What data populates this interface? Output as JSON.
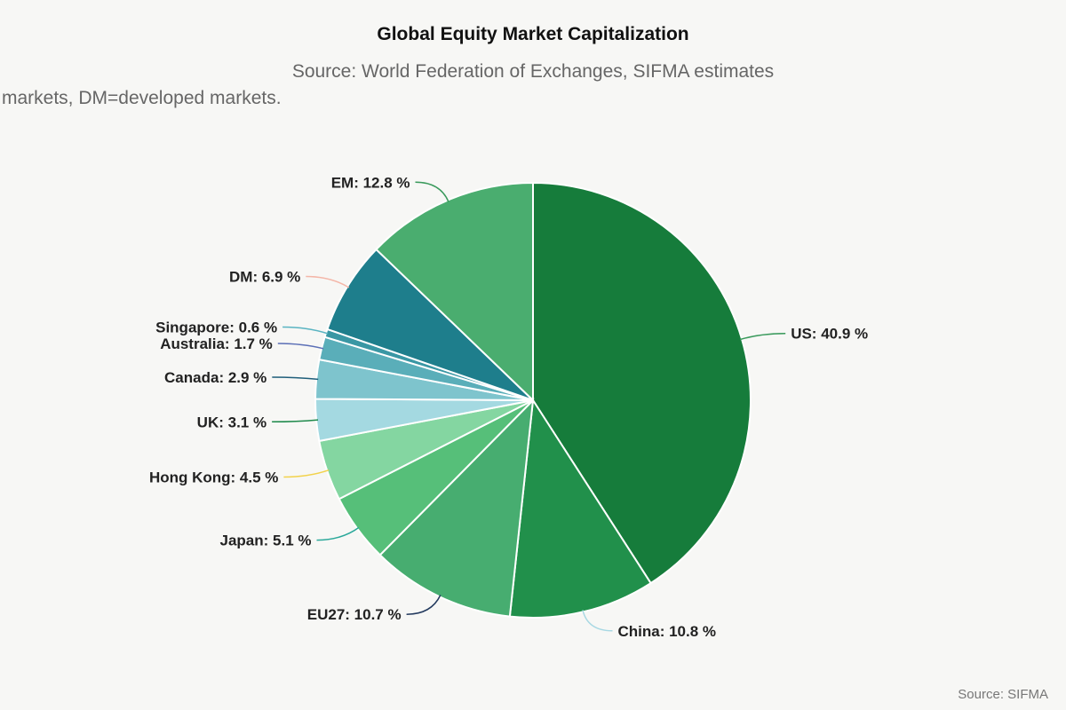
{
  "chart_data": {
    "type": "pie",
    "title": "Global Equity Market Capitalization",
    "subtitle": "Source: World Federation of Exchanges, SIFMA estimates",
    "subtitle_line2": "markets, DM=developed markets.",
    "credit": "Source: SIFMA",
    "unit": "%",
    "slices": [
      {
        "name": "US",
        "value": 40.9,
        "color": "#167c3b",
        "leader_color": "#3a9a5c"
      },
      {
        "name": "China",
        "value": 10.8,
        "color": "#21904b",
        "leader_color": "#a7d8e3"
      },
      {
        "name": "EU27",
        "value": 10.7,
        "color": "#47ad70",
        "leader_color": "#233a5e"
      },
      {
        "name": "Japan",
        "value": 5.1,
        "color": "#56bf79",
        "leader_color": "#2aa89a"
      },
      {
        "name": "Hong Kong",
        "value": 4.5,
        "color": "#84d6a1",
        "leader_color": "#f2d24b"
      },
      {
        "name": "UK",
        "value": 3.1,
        "color": "#a4d9e1",
        "leader_color": "#1f8a4c"
      },
      {
        "name": "Canada",
        "value": 2.9,
        "color": "#7ec4cd",
        "leader_color": "#1f5e7a"
      },
      {
        "name": "Australia",
        "value": 1.7,
        "color": "#5aaeb9",
        "leader_color": "#5b6fb6"
      },
      {
        "name": "Singapore",
        "value": 0.6,
        "color": "#3a97a4",
        "leader_color": "#5ab4c2"
      },
      {
        "name": "DM",
        "value": 6.9,
        "color": "#1e7e8c",
        "leader_color": "#f4b6a8"
      },
      {
        "name": "EM",
        "value": 12.8,
        "color": "#4aad6f",
        "leader_color": "#3a9a5c"
      }
    ]
  }
}
